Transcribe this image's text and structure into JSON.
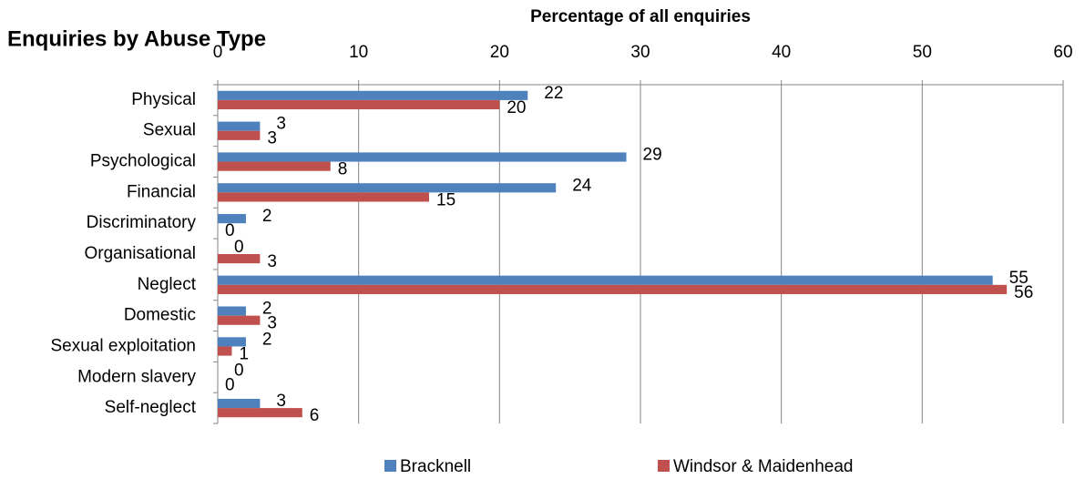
{
  "chart_data": {
    "type": "bar",
    "orientation": "horizontal",
    "title": "Enquiries by Abuse Type",
    "x_label": "Percentage of all enquiries",
    "categories": [
      "Physical",
      "Sexual",
      "Psychological",
      "Financial",
      "Discriminatory",
      "Organisational",
      "Neglect",
      "Domestic",
      "Sexual exploitation",
      "Modern slavery",
      "Self-neglect"
    ],
    "series": [
      {
        "name": "Bracknell",
        "color": "#4f81bd",
        "values": [
          22,
          3,
          29,
          24,
          2,
          0,
          55,
          2,
          2,
          0,
          3
        ]
      },
      {
        "name": "Windsor & Maidenhead",
        "color": "#c0504d",
        "values": [
          20,
          3,
          8,
          15,
          0,
          3,
          56,
          3,
          1,
          0,
          6
        ]
      }
    ],
    "xlim": [
      0,
      60
    ],
    "xticks": [
      0,
      10,
      20,
      30,
      40,
      50,
      60
    ],
    "grid": true,
    "legend": "bottom"
  }
}
